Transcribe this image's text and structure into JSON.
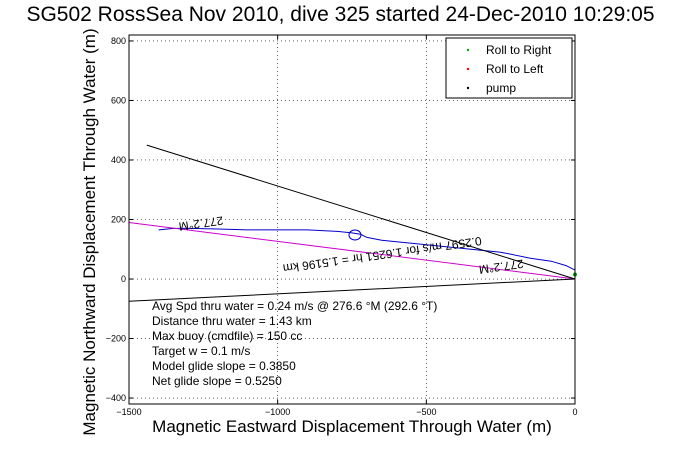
{
  "chart_data": {
    "type": "line",
    "title": "SG502 RossSea Nov 2010, dive 325 started 24-Dec-2010 10:29:05",
    "xlabel": "Magnetic Eastward Displacement Through Water (m)",
    "ylabel": "Magnetic Northward Displacement Through Water (m)",
    "xlim": [
      -1500,
      0
    ],
    "ylim": [
      -420,
      820
    ],
    "grid": true,
    "legend_position": "top-right",
    "x_ticks": [
      -1500,
      -1000,
      -500,
      0
    ],
    "x_tick_labels": [
      "−1500",
      "−1000",
      "−500",
      "0"
    ],
    "y_ticks": [
      -400,
      -200,
      0,
      200,
      400,
      600,
      800
    ],
    "y_tick_labels": [
      "−400",
      "−200",
      "0",
      "200",
      "400",
      "600",
      "800"
    ],
    "legend": [
      {
        "label": "Roll to Right",
        "color": "#00aa00"
      },
      {
        "label": "Roll to Left",
        "color": "#ff0000"
      },
      {
        "label": "pump",
        "color": "#000000"
      }
    ],
    "series": [
      {
        "kind": "track",
        "color": "#0000cc",
        "x": [
          0,
          -30,
          -80,
          -150,
          -250,
          -350,
          -450,
          -550,
          -650,
          -700,
          -720,
          -750,
          -800,
          -900,
          -1000,
          -1100,
          -1200,
          -1300,
          -1350,
          -1400
        ],
        "y": [
          30,
          45,
          60,
          70,
          90,
          100,
          110,
          120,
          130,
          140,
          150,
          155,
          160,
          165,
          165,
          165,
          168,
          170,
          170,
          165
        ]
      },
      {
        "kind": "heading",
        "color": "#cc00cc",
        "x": [
          0,
          -1500
        ],
        "y": [
          0,
          190
        ]
      },
      {
        "kind": "wedge",
        "color": "#000000",
        "x": [
          -1440,
          0,
          -1500
        ],
        "y": [
          450,
          0,
          -75
        ]
      }
    ],
    "rotated_labels": [
      {
        "text": "277.2°M",
        "x": -1260,
        "y": 200,
        "angle": 172
      },
      {
        "text": "277.2°M",
        "x": -250,
        "y": 55,
        "angle": 172
      },
      {
        "text": "0.2597 m/s for 1.6251 hr = 1.5196 km",
        "x": -650,
        "y": 95,
        "angle": 172
      }
    ],
    "annotations": [
      "Avg Spd thru water =  0.24 m/s @ 276.6   °M (292.6 °T)",
      "Distance thru water =  1.43 km",
      "Max buoy (cmdfile) = 150 cc",
      "Target w = 0.1 m/s",
      "Model glide slope = 0.3850",
      "Net glide slope = 0.5250"
    ]
  }
}
